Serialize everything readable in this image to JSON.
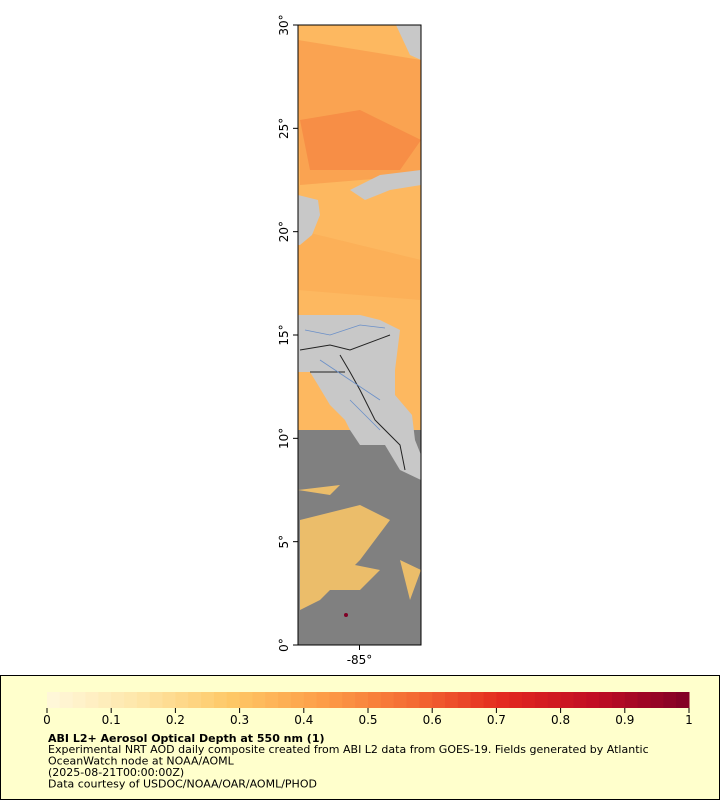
{
  "map": {
    "lat_range": [
      0,
      30
    ],
    "lat_ticks": [
      {
        "value": 0,
        "label": "0°"
      },
      {
        "value": 5,
        "label": "5°"
      },
      {
        "value": 10,
        "label": "10°"
      },
      {
        "value": 15,
        "label": "15°"
      },
      {
        "value": 20,
        "label": "20°"
      },
      {
        "value": 25,
        "label": "25°"
      },
      {
        "value": 30,
        "label": "30°"
      }
    ],
    "lon_range": [
      -88,
      -82
    ],
    "lon_ticks": [
      {
        "value": -85,
        "label": "-85°"
      }
    ]
  },
  "legend": {
    "colorbar": {
      "range": [
        0,
        1
      ],
      "ticks": [
        0,
        0.1,
        0.2,
        0.3,
        0.4,
        0.5,
        0.6,
        0.7,
        0.8,
        0.9,
        1
      ],
      "colors": [
        "#fff8dc",
        "#fee6a8",
        "#fec866",
        "#fd9e48",
        "#f46a32",
        "#e2281e",
        "#c00d24",
        "#7f0025"
      ]
    },
    "title": "ABI L2+ Aerosol Optical Depth at 550 nm (1)",
    "lines": [
      "Experimental NRT AOD daily composite created from ABI L2 data from GOES-19. Fields generated by Atlantic",
      "OceanWatch node at NOAA/AOML",
      "(2025-08-21T00:00:00Z)",
      "Data courtesy of USDOC/NOAA/OAR/AOML/PHOD"
    ]
  }
}
